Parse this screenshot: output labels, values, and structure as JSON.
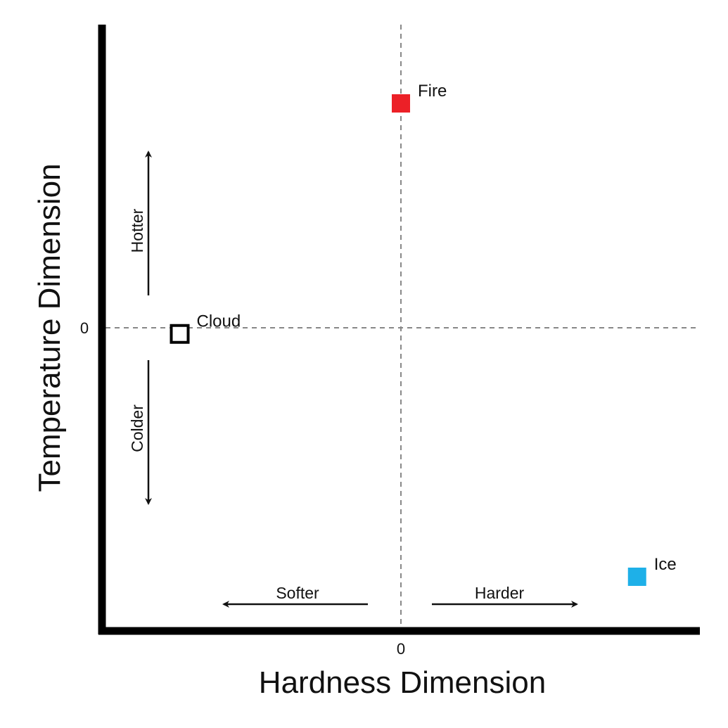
{
  "chart_data": {
    "type": "scatter",
    "xlabel": "Hardness Dimension",
    "ylabel": "Temperature Dimension",
    "xlim": [
      -1,
      1
    ],
    "ylim": [
      -1,
      1
    ],
    "x_tick_label": "0",
    "y_tick_label": "0",
    "points": [
      {
        "label": "Fire",
        "x": 0.0,
        "y": 0.73,
        "color": "#ec2027",
        "filled": true
      },
      {
        "label": "Cloud",
        "x": -0.74,
        "y": -0.02,
        "color": "#000000",
        "filled": false
      },
      {
        "label": "Ice",
        "x": 0.79,
        "y": -0.81,
        "color": "#1eb0e8",
        "filled": true
      }
    ],
    "annotations": {
      "hotter": "Hotter",
      "colder": "Colder",
      "softer": "Softer",
      "harder": "Harder"
    }
  }
}
